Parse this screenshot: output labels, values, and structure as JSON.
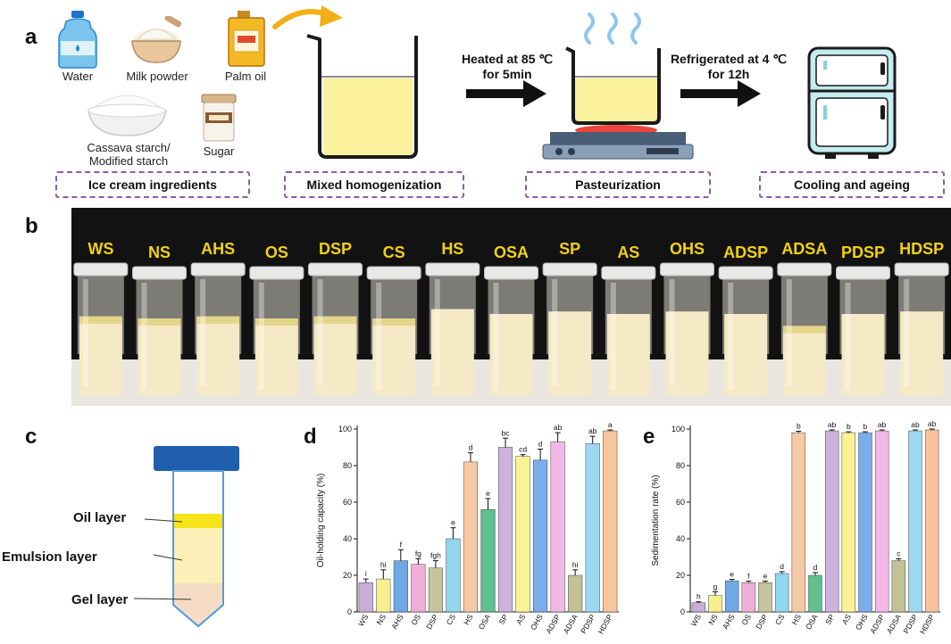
{
  "panels": {
    "a": "a",
    "b": "b",
    "c": "c",
    "d": "d",
    "e": "e"
  },
  "ingredients": {
    "water": "Water",
    "milk_powder": "Milk powder",
    "palm_oil": "Palm oil",
    "starch": "Cassava starch/ Modified starch",
    "starch_line1": "Cassava starch/",
    "starch_line2": "Modified starch",
    "sugar": "Sugar"
  },
  "steps": {
    "box1": "Ice cream ingredients",
    "box2": "Mixed homogenization",
    "box3": "Pasteurization",
    "box4": "Cooling and ageing",
    "heat_line1": "Heated at 85 ℃",
    "heat_line2": "for 5min",
    "fridge_line1": "Refrigerated at 4 ℃",
    "fridge_line2": "for 12h"
  },
  "sample_labels": [
    "WS",
    "NS",
    "AHS",
    "OS",
    "DSP",
    "CS",
    "HS",
    "OSA",
    "SP",
    "AS",
    "OHS",
    "ADSP",
    "ADSA",
    "PDSP",
    "HDSP"
  ],
  "layers": {
    "oil": "Oil layer",
    "emulsion": "Emulsion layer",
    "gel": "Gel layer"
  },
  "colors": {
    "box_border": "#8e5aa8",
    "cap_label": "#f4d20a",
    "tube_cap": "#1f5fae",
    "oil_layer": "#f6e31a",
    "emulsion_layer": "#fbf1b8",
    "gel_layer": "#f6dcc4"
  },
  "chart_data": [
    {
      "type": "bar",
      "panel": "d",
      "ylabel": "Oil-holding capacity (%)",
      "ylim": [
        0,
        100
      ],
      "yticks": [
        0,
        20,
        40,
        60,
        80,
        100
      ],
      "categories": [
        "WS",
        "NS",
        "AHS",
        "OS",
        "DSP",
        "CS",
        "HS",
        "OSA",
        "SP",
        "AS",
        "OHS",
        "ADSP",
        "ADSA",
        "PDSP",
        "HDSP"
      ],
      "values": [
        16,
        18,
        28,
        26,
        24,
        40,
        82,
        56,
        90,
        85,
        83,
        93,
        20,
        92,
        99
      ],
      "errors": [
        2,
        5,
        6,
        3,
        4,
        6,
        5,
        6,
        5,
        1,
        6,
        5,
        3,
        4,
        0.5
      ],
      "letters": [
        "i",
        "hi",
        "f",
        "fg",
        "fgh",
        "e",
        "d",
        "e",
        "bc",
        "cd",
        "d",
        "ab",
        "hi",
        "ab",
        "a"
      ],
      "colors": [
        "#c6aed9",
        "#f8f08c",
        "#6fa8e4",
        "#efafd6",
        "#c6c49a",
        "#8fd6ee",
        "#f6c9a6",
        "#5ec18e",
        "#cdb2dd",
        "#fbf296",
        "#7badea",
        "#f2b9e8",
        "#c2c197",
        "#9dd8f2",
        "#f7c49c"
      ]
    },
    {
      "type": "bar",
      "panel": "e",
      "ylabel": "Sedimentation rate (%)",
      "ylim": [
        0,
        100
      ],
      "yticks": [
        0,
        20,
        40,
        60,
        80,
        100
      ],
      "categories": [
        "WS",
        "NS",
        "AHS",
        "OS",
        "DSP",
        "CS",
        "HS",
        "OSA",
        "SP",
        "AS",
        "OHS",
        "ADSP",
        "ADSA",
        "PDSP",
        "HDSP"
      ],
      "values": [
        5,
        9,
        17,
        16,
        16,
        21,
        98,
        20,
        99,
        98,
        98,
        99,
        28,
        99,
        99.5
      ],
      "errors": [
        0.5,
        2,
        0.8,
        0.8,
        0.8,
        1,
        0.8,
        1.5,
        0.5,
        0.5,
        0.5,
        0.5,
        1,
        0.5,
        0.5
      ],
      "letters": [
        "h",
        "g",
        "e",
        "f",
        "e",
        "d",
        "b",
        "d",
        "ab",
        "b",
        "b",
        "ab",
        "c",
        "ab",
        "ab"
      ],
      "colors": [
        "#c6aed9",
        "#f8f08c",
        "#6fa8e4",
        "#efafd6",
        "#c6c49a",
        "#8fd6ee",
        "#f6c9a6",
        "#5ec18e",
        "#cdb2dd",
        "#fbf296",
        "#7badea",
        "#f2b9e8",
        "#c2c197",
        "#9dd8f2",
        "#f7c49c"
      ]
    }
  ]
}
